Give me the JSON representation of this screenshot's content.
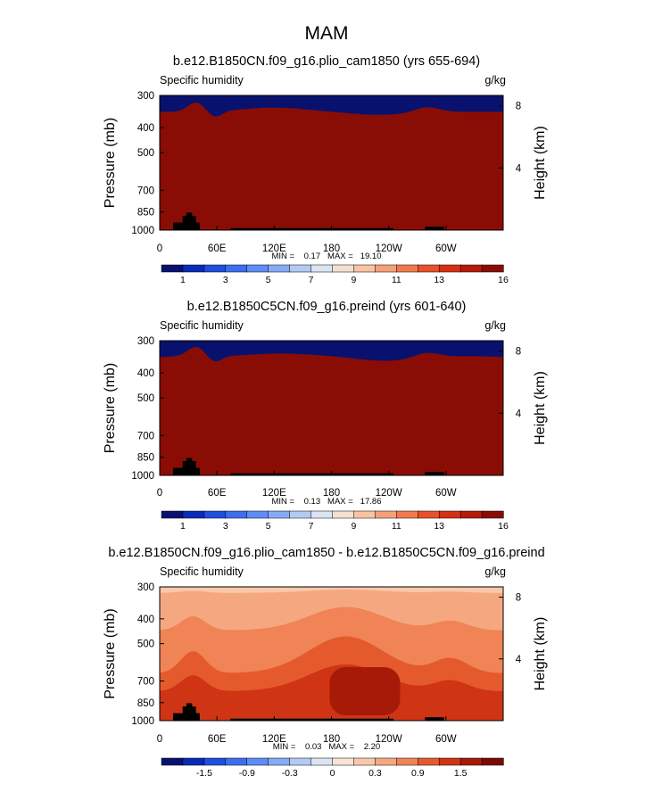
{
  "page_title": "MAM",
  "colors": {
    "blue_red_12": [
      "#08126e",
      "#0a2bb8",
      "#1f4fdc",
      "#3d6ef0",
      "#5f8df5",
      "#86aaf5",
      "#b4caf2",
      "#dbe4f2",
      "#f4e0d2",
      "#f8c3a4",
      "#f4a07a",
      "#f07a4e",
      "#e8512a",
      "#d63015",
      "#b51a0a",
      "#8a0d05"
    ],
    "diff_colors": [
      "#08126e",
      "#0a2bb8",
      "#1f4fdc",
      "#3d6ef0",
      "#5f8df5",
      "#86aaf5",
      "#b4caf2",
      "#dbe4f2",
      "#f7e4d6",
      "#f8c8aa",
      "#f5a880",
      "#f08456",
      "#e55a2c",
      "#cf3514",
      "#a81a08",
      "#7a0b04"
    ],
    "topography": "#000000"
  },
  "panels": [
    {
      "title": "b.e12.B1850CN.f09_g16.plio_cam1850 (yrs 655-694)",
      "left_label": "Specific humidity",
      "right_label": "g/kg",
      "ylabel": "Pressure (mb)",
      "y2label": "Height (km)",
      "stats": "MIN =    0.17   MAX =   19.10",
      "colorbar_labels": [
        "1",
        "3",
        "5",
        "7",
        "9",
        "11",
        "13",
        "16"
      ]
    },
    {
      "title": "b.e12.B1850C5CN.f09_g16.preind (yrs 601-640)",
      "left_label": "Specific humidity",
      "right_label": "g/kg",
      "ylabel": "Pressure (mb)",
      "y2label": "Height (km)",
      "stats": "MIN =    0.13   MAX =   17.86",
      "colorbar_labels": [
        "1",
        "3",
        "5",
        "7",
        "9",
        "11",
        "13",
        "16"
      ]
    },
    {
      "title": "b.e12.B1850CN.f09_g16.plio_cam1850 - b.e12.B1850C5CN.f09_g16.preind",
      "left_label": "Specific humidity",
      "right_label": "g/kg",
      "ylabel": "Pressure (mb)",
      "y2label": "Height (km)",
      "stats": "MIN =    0.03   MAX =    2.20",
      "colorbar_labels": [
        "-1.5",
        "-0.9",
        "-0.3",
        "0",
        "0.3",
        "0.9",
        "1.5"
      ]
    }
  ],
  "chart_data": [
    {
      "type": "heatmap",
      "title": "b.e12.B1850CN.f09_g16.plio_cam1850 (yrs 655-694)",
      "xlabel": "",
      "ylabel": "Pressure (mb)",
      "y2label": "Height (km)",
      "x_ticks": [
        "0",
        "60E",
        "120E",
        "180",
        "120W",
        "60W"
      ],
      "x_tick_values": [
        0,
        60,
        120,
        180,
        240,
        300
      ],
      "xlim": [
        0,
        360
      ],
      "y_ticks": [
        "300",
        "400",
        "500",
        "700",
        "850",
        "1000"
      ],
      "y_tick_values": [
        300,
        400,
        500,
        700,
        850,
        1000
      ],
      "ylim": [
        1000,
        300
      ],
      "y_scale": "log",
      "y2_ticks": [
        "8",
        "4"
      ],
      "y2_tick_values": [
        8,
        4
      ],
      "min": 0.17,
      "max": 19.1,
      "colorbar_levels": [
        "1",
        "3",
        "5",
        "7",
        "9",
        "11",
        "13",
        "16"
      ]
    },
    {
      "type": "heatmap",
      "title": "b.e12.B1850C5CN.f09_g16.preind (yrs 601-640)",
      "xlabel": "",
      "ylabel": "Pressure (mb)",
      "y2label": "Height (km)",
      "x_ticks": [
        "0",
        "60E",
        "120E",
        "180",
        "120W",
        "60W"
      ],
      "x_tick_values": [
        0,
        60,
        120,
        180,
        240,
        300
      ],
      "xlim": [
        0,
        360
      ],
      "y_ticks": [
        "300",
        "400",
        "500",
        "700",
        "850",
        "1000"
      ],
      "y_tick_values": [
        300,
        400,
        500,
        700,
        850,
        1000
      ],
      "ylim": [
        1000,
        300
      ],
      "y_scale": "log",
      "y2_ticks": [
        "8",
        "4"
      ],
      "y2_tick_values": [
        8,
        4
      ],
      "min": 0.13,
      "max": 17.86,
      "colorbar_levels": [
        "1",
        "3",
        "5",
        "7",
        "9",
        "11",
        "13",
        "16"
      ]
    },
    {
      "type": "heatmap",
      "title": "b.e12.B1850CN.f09_g16.plio_cam1850 - b.e12.B1850C5CN.f09_g16.preind",
      "xlabel": "",
      "ylabel": "Pressure (mb)",
      "y2label": "Height (km)",
      "x_ticks": [
        "0",
        "60E",
        "120E",
        "180",
        "120W",
        "60W"
      ],
      "x_tick_values": [
        0,
        60,
        120,
        180,
        240,
        300
      ],
      "xlim": [
        0,
        360
      ],
      "y_ticks": [
        "300",
        "400",
        "500",
        "700",
        "850",
        "1000"
      ],
      "y_tick_values": [
        300,
        400,
        500,
        700,
        850,
        1000
      ],
      "ylim": [
        1000,
        300
      ],
      "y_scale": "log",
      "y2_ticks": [
        "8",
        "4"
      ],
      "y2_tick_values": [
        8,
        4
      ],
      "min": 0.03,
      "max": 2.2,
      "colorbar_levels": [
        "-1.5",
        "-0.9",
        "-0.3",
        "0",
        "0.3",
        "0.9",
        "1.5"
      ]
    }
  ]
}
